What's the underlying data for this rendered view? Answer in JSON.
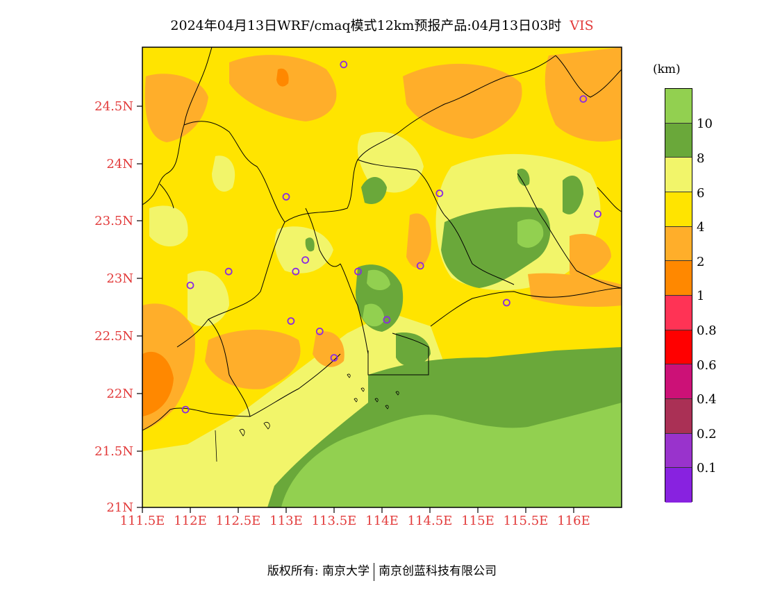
{
  "title": {
    "main": "2024年04月13日WRF/cmaq模式12km预报产品:04月13日03时",
    "variable": "VIS",
    "variable_color": "#e23a3a"
  },
  "map": {
    "lat_ticks": [
      "24.5N",
      "24N",
      "23.5N",
      "23N",
      "22.5N",
      "22N",
      "21.5N",
      "21N"
    ],
    "lon_ticks": [
      "111.5E",
      "112E",
      "112.5E",
      "113E",
      "113.5E",
      "114E",
      "114.5E",
      "115E",
      "115.5E",
      "116E"
    ],
    "tick_color": "#e23a3a",
    "lon_range": [
      111.5,
      116.5
    ],
    "lat_range": [
      21.0,
      25.0
    ],
    "stations": [
      [
        113.6,
        24.85
      ],
      [
        116.1,
        24.55
      ],
      [
        113.0,
        23.7
      ],
      [
        114.6,
        23.73
      ],
      [
        116.25,
        23.55
      ],
      [
        112.4,
        23.05
      ],
      [
        113.2,
        23.15
      ],
      [
        113.1,
        23.05
      ],
      [
        113.75,
        23.05
      ],
      [
        114.4,
        23.1
      ],
      [
        112.0,
        22.93
      ],
      [
        113.05,
        22.62
      ],
      [
        113.35,
        22.53
      ],
      [
        114.05,
        22.63
      ],
      [
        113.5,
        22.3
      ],
      [
        111.95,
        21.85
      ],
      [
        115.3,
        22.78
      ]
    ]
  },
  "colorbar": {
    "unit": "(km)",
    "colors": [
      "#92d050",
      "#6aa83a",
      "#f2f56a",
      "#ffe400",
      "#ffae2a",
      "#ff8800",
      "#ff3355",
      "#ff0000",
      "#cc1177",
      "#aa3055",
      "#9933cc",
      "#8822e0"
    ],
    "tick_labels": [
      "10",
      "8",
      "6",
      "4",
      "2",
      "1",
      "0.8",
      "0.6",
      "0.4",
      "0.2",
      "0.1"
    ]
  },
  "footer": {
    "left": "版权所有: 南京大学",
    "right": "南京创蓝科技有限公司"
  }
}
